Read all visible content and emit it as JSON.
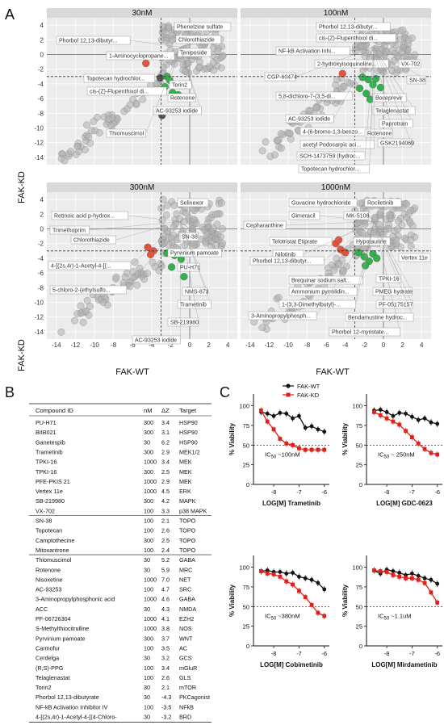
{
  "panels": {
    "A": "A",
    "B": "B",
    "C": "C"
  },
  "scatter": {
    "facets": [
      {
        "title": "30nM",
        "labels": [
          "Phorbol 12,13-dibutyr...",
          "1-Aminocyclopropane...",
          "Phenelzine sulfate",
          "Chlorothiazide",
          "Teniposide",
          "Topotecan hydrochlor...",
          "Torin2",
          "cis-(Z)-Flupenthixol di...",
          "Rotenone",
          "AC-93253 iodide",
          "Thiomuscimol"
        ]
      },
      {
        "title": "100nM",
        "labels": [
          "Phorbol 12,13-dibutyr...",
          "cis-(Z)-Flupenthixol di...",
          "NF-kB Activation Inhi...",
          "2-hydroxyisoquinoline...",
          "CGP-60474",
          "VX-702",
          "SN-38",
          "5,8-dichloro-7-(3,5-di...",
          "Boceprevir",
          "Telaglenastat",
          "AC-93253 iodide",
          "Paprotrain",
          "4-(6-bromo-1,3-benzo...",
          "Rotenone",
          "acetyl Podocarpic aci...",
          "GSK2194069",
          "SCH-1473759 (hydroc...",
          "Topotecan hydrochlor..."
        ]
      },
      {
        "title": "300nM",
        "labels": [
          "Selinexor",
          "Retinoic acid p-hydrox...",
          "SN-38",
          "Trimethoprim",
          "Chlorothiazide",
          "Pyrvinium pamoate",
          "4-[(2s,4r)-1-Acetyl-4-[(...",
          "PU-H71",
          "5-chloro-2-(ethylsulfo...",
          "NMS-873",
          "Trametinib",
          "SB-219980",
          "AC-93253 iodide"
        ]
      },
      {
        "title": "1000nM",
        "labels": [
          "Guvacine hydrochloride",
          "Rociletinib",
          "Gimeracil",
          "MK-5108",
          "Cepharanthine",
          "Telotristat Etiprate",
          "Hypotaurine",
          "Nilotinib",
          "Vertex 11e",
          "Phorbol 12,13-dibutyr...",
          "TPKI-16",
          "Brequinar sodium salt...",
          "PMEG hydrate",
          "Ammonium pyrrolidin...",
          "PF-05175157",
          "1-(3,3-Dimethylbutyl)-...",
          "3-Aminopropylphosph...",
          "Bendamustine hydroc...",
          "Phorbol 12-myristate..."
        ]
      }
    ],
    "x_ticks": [
      -14,
      -12,
      -10,
      -8,
      -6,
      -4,
      -2,
      0,
      2,
      4
    ],
    "y_ticks": [
      4,
      2,
      0,
      -2,
      -4,
      -6,
      -8,
      -10,
      -12,
      -14
    ],
    "xlabel": "FAK-WT",
    "ylabel": "FAK-KD"
  },
  "table": {
    "headers": [
      "Compound ID",
      "nM",
      "ΔZ",
      "Target"
    ],
    "rows": [
      [
        "PU-H71",
        "300",
        "3.4",
        "HSP90"
      ],
      [
        "BIIB021",
        "300",
        "3.1",
        "HSP90"
      ],
      [
        "Ganetespib",
        "30",
        "6.2",
        "HSP90"
      ],
      [
        "Trametinib",
        "300",
        "2.9",
        "MEK1/2"
      ],
      [
        "TPKI-16",
        "1000",
        "3.4",
        "MEK"
      ],
      [
        "TPKI-16",
        "300",
        "2.5",
        "MEK"
      ],
      [
        "PFE-PKIS 21",
        "1000",
        "2.9",
        "MEK"
      ],
      [
        "Vertex 11e",
        "1000",
        "4.5",
        "ERK"
      ],
      [
        "SB-219980",
        "300",
        "4.2",
        "MAPK"
      ],
      [
        "VX-702",
        "100",
        "3.3",
        "p38 MAPK"
      ],
      [
        "SN-38",
        "100",
        "2.1",
        "TOPO"
      ],
      [
        "Topotecan",
        "100",
        "2.6",
        "TOPO"
      ],
      [
        "Camptothecine",
        "300",
        "2.5",
        "TOPO"
      ],
      [
        "Mitoxantrone",
        "100",
        "2.4",
        "TOPO"
      ],
      [
        "Thiomuscimol",
        "30",
        "5.2",
        "GABA"
      ],
      [
        "Rotenone",
        "30",
        "5.9",
        "MRC"
      ],
      [
        "Nisoxetine",
        "1000",
        "7.0",
        "NET"
      ],
      [
        "AC-93253",
        "100",
        "4.7",
        "SRC"
      ],
      [
        "3-Aminopropylphosphonic acid",
        "1000",
        "4.6",
        "GABA"
      ],
      [
        "ACC",
        "30",
        "4.3",
        "NMDA"
      ],
      [
        "PF-06726304",
        "1000",
        "4.1",
        "EZH2"
      ],
      [
        "S-Methylthiocitrulline",
        "1000",
        "3.8",
        "NOS"
      ],
      [
        "Pyrvinium pamoate",
        "300",
        "3.7",
        "WNT"
      ],
      [
        "Carmofur",
        "100",
        "3.5",
        "AC"
      ],
      [
        "Cerdelga",
        "30",
        "3.2",
        "GCS"
      ],
      [
        "(R,S)-PPG",
        "100",
        "3.4",
        "mGluR"
      ],
      [
        "Telaglenastat",
        "100",
        "2.6",
        "GLS"
      ],
      [
        "Torin2",
        "30",
        "2.1",
        "mTOR"
      ],
      [
        "Phorbol 12,13-dibutyrate",
        "30",
        "-4.3",
        "PKCagonist"
      ],
      [
        "NF-kB Activation Inhibitor IV",
        "100",
        "-3.5",
        "NFkB"
      ],
      [
        "4-[(2s,4r)-1-Acetyl-4-[(4-Chloro-",
        "30",
        "-3.2",
        "BRD"
      ]
    ]
  },
  "dose_response": {
    "legend": [
      "FAK-WT",
      "FAK-KD"
    ],
    "colors": {
      "wt": "#111111",
      "kd": "#e0201b"
    },
    "ylabel": "% Viability",
    "x_ticks": [
      -8,
      -7,
      -6
    ],
    "y_ticks": [
      0,
      25,
      50,
      75,
      100
    ],
    "charts": [
      {
        "xlabel": "LOG[M] Trametinib",
        "ic50": "IC50 ~100nM",
        "ic50_main": "IC",
        "ic50_sub": "50",
        "ic50_rest": " ~100nM",
        "wt": {
          "x": [
            -8.5,
            -8.25,
            -8,
            -7.75,
            -7.5,
            -7.25,
            -7,
            -6.75,
            -6.5,
            -6.25,
            -6
          ],
          "y": [
            92,
            90,
            87,
            91,
            90,
            84,
            87,
            72,
            74,
            70,
            67
          ]
        },
        "kd": {
          "x": [
            -8.5,
            -8.25,
            -8,
            -7.75,
            -7.5,
            -7.25,
            -7,
            -6.75,
            -6.5,
            -6.25,
            -6
          ],
          "y": [
            94,
            80,
            70,
            58,
            52,
            50,
            46,
            44,
            44,
            44,
            44
          ]
        }
      },
      {
        "xlabel": "LOG[M] GDC-0623",
        "ic50": "IC50 ~ 250nM",
        "ic50_main": "IC",
        "ic50_sub": "50",
        "ic50_rest": " ~ 250nM",
        "wt": {
          "x": [
            -8.5,
            -8.25,
            -8,
            -7.75,
            -7.5,
            -7.25,
            -7,
            -6.75,
            -6.5,
            -6.25,
            -6
          ],
          "y": [
            94,
            95,
            92,
            87,
            91,
            90,
            86,
            82,
            84,
            79,
            77
          ]
        },
        "kd": {
          "x": [
            -8.5,
            -8.25,
            -8,
            -7.75,
            -7.5,
            -7.25,
            -7,
            -6.75,
            -6.5,
            -6.25,
            -6
          ],
          "y": [
            92,
            88,
            84,
            80,
            76,
            68,
            60,
            52,
            45,
            40,
            38
          ]
        }
      },
      {
        "xlabel": "LOG[M] Cobimetinib",
        "ic50": "IC50 ~380nM",
        "ic50_main": "IC",
        "ic50_sub": "50",
        "ic50_rest": " ~380nM",
        "wt": {
          "x": [
            -8.5,
            -8.25,
            -8,
            -7.75,
            -7.5,
            -7.25,
            -7,
            -6.75,
            -6.5,
            -6.25,
            -6
          ],
          "y": [
            95,
            96,
            94,
            94,
            92,
            93,
            88,
            86,
            84,
            80,
            72
          ]
        },
        "kd": {
          "x": [
            -8.5,
            -8.25,
            -8,
            -7.75,
            -7.5,
            -7.25,
            -7,
            -6.75,
            -6.5,
            -6.25,
            -6
          ],
          "y": [
            95,
            92,
            91,
            88,
            82,
            78,
            70,
            62,
            52,
            42,
            38
          ]
        }
      },
      {
        "xlabel": "LOG[M] Mirdametinib",
        "ic50": "IC50 ~1.1uM",
        "ic50_main": "IC",
        "ic50_sub": "50",
        "ic50_rest": " ~1.1uM",
        "wt": {
          "x": [
            -8.5,
            -8.25,
            -8,
            -7.75,
            -7.5,
            -7.25,
            -7,
            -6.75,
            -6.5,
            -6.25,
            -6
          ],
          "y": [
            96,
            92,
            97,
            95,
            93,
            90,
            92,
            89,
            86,
            84,
            79
          ]
        },
        "kd": {
          "x": [
            -8.5,
            -8.25,
            -8,
            -7.75,
            -7.5,
            -7.25,
            -7,
            -6.75,
            -6.5,
            -6.25,
            -6
          ],
          "y": [
            96,
            95,
            94,
            90,
            88,
            86,
            86,
            84,
            80,
            68,
            55
          ]
        }
      }
    ]
  },
  "chart_data": {
    "type": "scatter",
    "facet_titles": [
      "30nM",
      "100nM",
      "300nM",
      "1000nM"
    ],
    "xlabel": "FAK-WT",
    "ylabel": "FAK-KD",
    "xlim": [
      -15,
      5
    ],
    "ylim": [
      -15,
      5
    ],
    "threshold_lines": {
      "x": -3,
      "y": -3
    },
    "colors": {
      "gray": "#b0b0b0",
      "green": "#2fb24c",
      "red": "#e8503a",
      "dark": "#555555"
    },
    "series": [
      {
        "facet": "30nM",
        "color": "red",
        "x": [
          -4.6
        ],
        "y": [
          -1.2
        ]
      },
      {
        "facet": "30nM",
        "color": "dark",
        "x": [
          -3.1,
          -2.9
        ],
        "y": [
          -3.2,
          -8.3
        ]
      },
      {
        "facet": "30nM",
        "color": "green",
        "x": [
          -2.4,
          -2.6,
          -1.8,
          -0.9,
          -1.2,
          -2.1
        ],
        "y": [
          -3.0,
          -4.4,
          -5.2,
          -4.2,
          -5.5,
          -3.5
        ]
      },
      {
        "facet": "100nM",
        "color": "red",
        "x": [
          -5.1,
          -4.3
        ],
        "y": [
          -1.2,
          -2.6
        ]
      },
      {
        "facet": "100nM",
        "color": "green",
        "x": [
          -2.2,
          -1.6,
          -1.1,
          -1.8,
          -0.8,
          -0.3,
          -2.5,
          -1.4
        ],
        "y": [
          -3.1,
          -3.4,
          -4.1,
          -5.3,
          -3.3,
          -4.5,
          -4.6,
          -6.1
        ]
      },
      {
        "facet": "300nM",
        "color": "red",
        "x": [
          -4.4,
          -3.8,
          -4.1
        ],
        "y": [
          -2.5,
          -3.0,
          -3.5
        ]
      },
      {
        "facet": "300nM",
        "color": "green",
        "x": [
          -2.4,
          -1.6,
          -0.9,
          -0.6,
          -1.9,
          -0.2,
          -0.5
        ],
        "y": [
          -3.3,
          -3.6,
          -4.1,
          -6.5,
          -5.2,
          -8.4,
          -3.2
        ]
      },
      {
        "facet": "1000nM",
        "color": "red",
        "x": [
          -5.0,
          -4.5,
          -4.0,
          -4.7
        ],
        "y": [
          -2.0,
          -2.8,
          -3.2,
          -1.5
        ]
      },
      {
        "facet": "1000nM",
        "color": "green",
        "x": [
          -2.6,
          -2.0,
          -1.5,
          -1.1,
          -0.7,
          -1.9
        ],
        "y": [
          -3.2,
          -3.8,
          -4.4,
          -3.4,
          -4.0,
          -5.0
        ]
      }
    ]
  }
}
